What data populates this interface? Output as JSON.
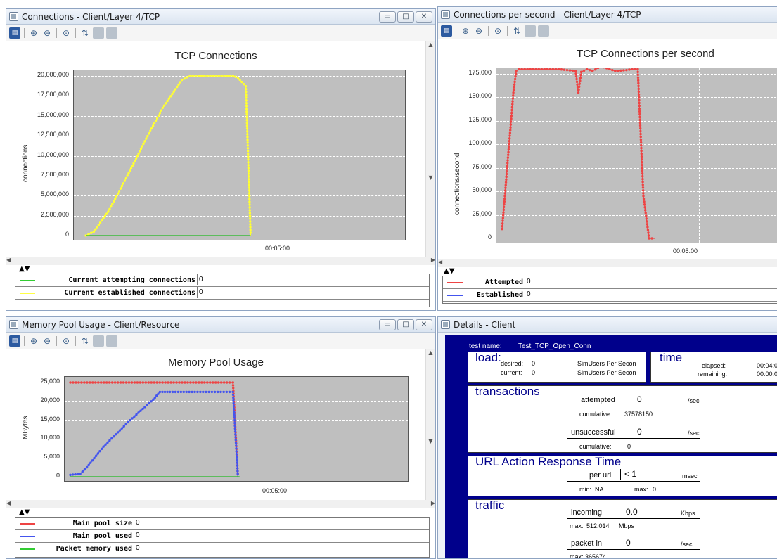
{
  "win1": {
    "title": "Connections - Client/Layer 4/TCP",
    "chart_title": "TCP Connections",
    "ylabel": "connections",
    "yticks": [
      "20,000,000",
      "17,500,000",
      "15,000,000",
      "12,500,000",
      "10,000,000",
      "7,500,000",
      "5,000,000",
      "2,500,000",
      "0"
    ],
    "xtick": "00:05:00",
    "legend": [
      {
        "name": "Current attempting connections",
        "value": "0",
        "color": "#33cc33"
      },
      {
        "name": "Current established connections",
        "value": "0",
        "color": "#ffff44"
      }
    ]
  },
  "win2": {
    "title": "Connections per second - Client/Layer 4/TCP",
    "chart_title": "TCP Connections per second",
    "ylabel": "connections/second",
    "yticks": [
      "175,000",
      "150,000",
      "125,000",
      "100,000",
      "75,000",
      "50,000",
      "25,000",
      "0"
    ],
    "xtick": "00:05:00",
    "legend": [
      {
        "name": "Attempted",
        "value": "0",
        "color": "#ee4444"
      },
      {
        "name": "Established",
        "value": "0",
        "color": "#4455ee"
      }
    ]
  },
  "win3": {
    "title": "Memory Pool Usage - Client/Resource",
    "chart_title": "Memory Pool Usage",
    "ylabel": "MBytes",
    "yticks": [
      "25,000",
      "20,000",
      "15,000",
      "10,000",
      "5,000",
      "0"
    ],
    "xtick": "00:05:00",
    "legend": [
      {
        "name": "Main pool size",
        "value": "0",
        "color": "#ee4444"
      },
      {
        "name": "Main pool used",
        "value": "0",
        "color": "#4455ee"
      },
      {
        "name": "Packet memory used",
        "value": "0",
        "color": "#33cc33"
      }
    ]
  },
  "win4": {
    "title": "Details - Client"
  },
  "details": {
    "test_name_label": "test name:",
    "test_name": "Test_TCP_Open_Conn",
    "load": "load:",
    "desired_label": "desired:",
    "desired": "0",
    "current_label": "current:",
    "current": "0",
    "simusers1": "SimUsers Per Secon",
    "simusers2": "SimUsers Per Secon",
    "time": "time",
    "elapsed_label": "elapsed:",
    "elapsed": "00:04:0",
    "remaining_label": "remaining:",
    "remaining": "00:00:0",
    "transactions": "transactions",
    "attempted_label": "attempted",
    "attempted": "0",
    "per_sec": "/sec",
    "cumulative_label": "cumulative:",
    "cumulative1": "37578150",
    "unsuccessful_label": "unsuccessful",
    "unsuccessful": "0",
    "cumulative2": "0",
    "url": "URL Action Response Time",
    "per_url_label": "per url",
    "per_url": "< 1",
    "msec": "msec",
    "min_label": "min:",
    "min": "NA",
    "max_label": "max:",
    "max": "0",
    "traffic": "traffic",
    "incoming_label": "incoming",
    "incoming": "0.0",
    "kbps": "Kbps",
    "traffic_max_label": "max:",
    "traffic_max": "512.014",
    "mbps": "Mbps",
    "packet_in_label": "packet in",
    "packet_in": "0",
    "packet_max": "max:  365674"
  },
  "chart_data": [
    {
      "type": "line",
      "title": "TCP Connections",
      "ylabel": "connections",
      "xtick": "00:05:00",
      "ylim": [
        0,
        21000000
      ],
      "series": [
        {
          "name": "Current established connections",
          "x": [
            0,
            5,
            10,
            15,
            20,
            25,
            30,
            35,
            40,
            45,
            48,
            50
          ],
          "values": [
            0,
            0,
            4000000,
            8000000,
            12000000,
            16000000,
            19800000,
            20000000,
            20000000,
            19900000,
            18500000,
            0
          ]
        },
        {
          "name": "Current attempting connections",
          "x": [
            0,
            50
          ],
          "values": [
            0,
            0
          ]
        }
      ]
    },
    {
      "type": "line",
      "title": "TCP Connections per second",
      "ylabel": "connections/second",
      "xtick": "00:05:00",
      "ylim": [
        0,
        185000
      ],
      "series": [
        {
          "name": "Attempted",
          "x": [
            0,
            1,
            2,
            3,
            4,
            5,
            6,
            10,
            20,
            25,
            26,
            27,
            30,
            35,
            40,
            44,
            46,
            47,
            48,
            50
          ],
          "values": [
            10000,
            45000,
            83000,
            118000,
            155000,
            178000,
            180000,
            180000,
            179000,
            178000,
            155000,
            178000,
            183000,
            178000,
            179000,
            180000,
            45000,
            0,
            0,
            0
          ]
        },
        {
          "name": "Established",
          "x": [
            0,
            50
          ],
          "values": [
            0,
            0
          ]
        }
      ]
    },
    {
      "type": "line",
      "title": "Memory Pool Usage",
      "ylabel": "MBytes",
      "xtick": "00:05:00",
      "ylim": [
        0,
        26000
      ],
      "series": [
        {
          "name": "Main pool size",
          "x": [
            0,
            45,
            47,
            50
          ],
          "values": [
            25000,
            25000,
            0,
            0
          ]
        },
        {
          "name": "Main pool used",
          "x": [
            0,
            3,
            8,
            15,
            22,
            27,
            30,
            45,
            47,
            50
          ],
          "values": [
            500,
            1500,
            5500,
            12500,
            19500,
            22500,
            22500,
            22500,
            0,
            0
          ]
        },
        {
          "name": "Packet memory used",
          "x": [
            0,
            50
          ],
          "values": [
            0,
            0
          ]
        }
      ]
    }
  ]
}
